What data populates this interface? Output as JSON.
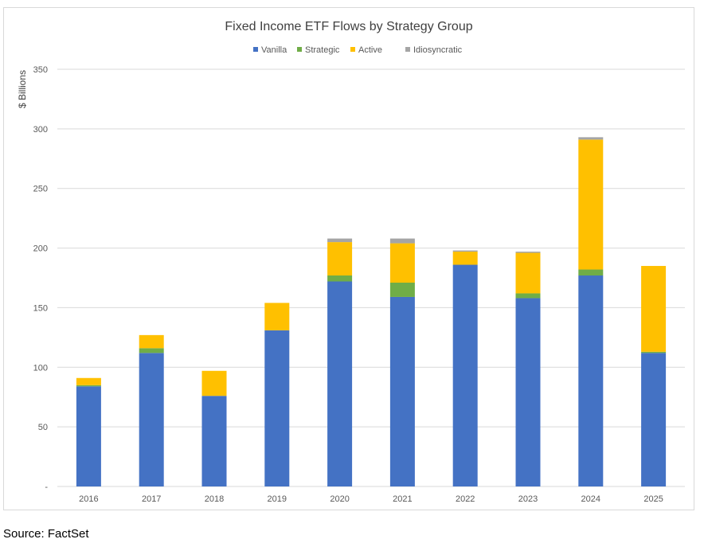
{
  "chart_data": {
    "type": "bar",
    "stacked": true,
    "title": "Fixed Income ETF Flows by Strategy Group",
    "xlabel": "",
    "ylabel": "$ Billions",
    "ylim": [
      0,
      350
    ],
    "yticks": [
      0,
      50,
      100,
      150,
      200,
      250,
      300,
      350
    ],
    "ytick_labels": [
      "-",
      "50",
      "100",
      "150",
      "200",
      "250",
      "300",
      "350"
    ],
    "grid": true,
    "legend_position": "top-center",
    "categories": [
      "2016",
      "2017",
      "2018",
      "2019",
      "2020",
      "2021",
      "2022",
      "2023",
      "2024",
      "2025"
    ],
    "series": [
      {
        "name": "Vanilla",
        "color": "#4472c4",
        "values": [
          84,
          112,
          76,
          131,
          172,
          159,
          186,
          158,
          177,
          112
        ]
      },
      {
        "name": "Strategic",
        "color": "#70ad47",
        "values": [
          1,
          4,
          0,
          0,
          5,
          12,
          0,
          4,
          5,
          1
        ]
      },
      {
        "name": "Active",
        "color": "#ffc000",
        "values": [
          6,
          11,
          21,
          23,
          28,
          33,
          11,
          34,
          109,
          72
        ]
      },
      {
        "name": "Idiosyncratic",
        "color": "#a5a5a5",
        "values": [
          0,
          0,
          0,
          0,
          3,
          4,
          1,
          1,
          2,
          0
        ]
      }
    ]
  },
  "footer": {
    "source": "Source: FactSet"
  }
}
